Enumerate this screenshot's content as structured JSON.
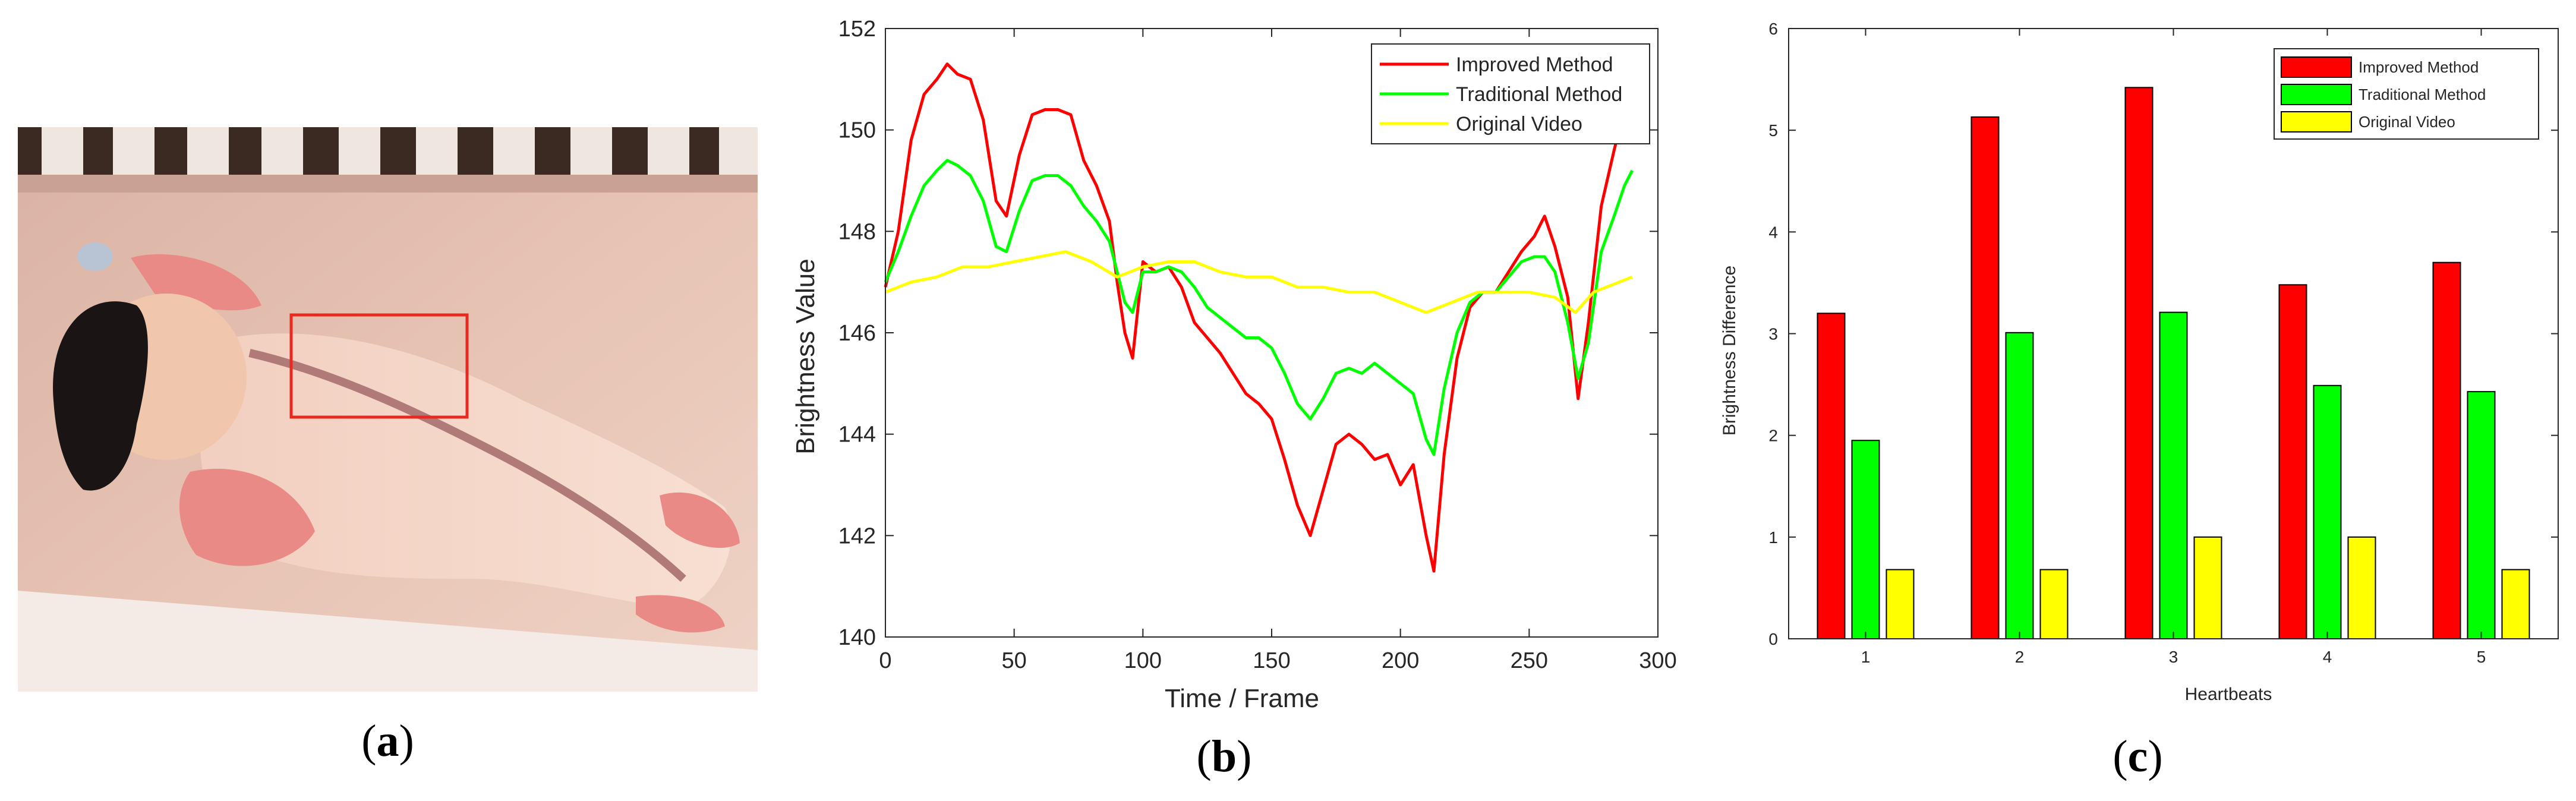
{
  "figure": {
    "photo_caption": "a",
    "photo": {
      "title": "",
      "roi_color": "#e8291f"
    }
  },
  "chart_data": [
    {
      "panel": "b",
      "caption": "b",
      "type": "line",
      "title": "",
      "xlabel": "Time / Frame",
      "ylabel": "Brightness Value",
      "xlim": [
        0,
        300
      ],
      "ylim": [
        140,
        152
      ],
      "xticks": [
        "0",
        "50",
        "100",
        "150",
        "200",
        "250",
        "300"
      ],
      "yticks": [
        "140",
        "142",
        "144",
        "146",
        "148",
        "150",
        "152"
      ],
      "grid": false,
      "legend_position": "top-right",
      "series": [
        {
          "name": "Improved Method",
          "color": "#ff0000",
          "x": [
            0,
            5,
            10,
            15,
            20,
            24,
            28,
            33,
            38,
            43,
            47,
            52,
            57,
            62,
            67,
            72,
            77,
            82,
            87,
            90,
            93,
            96,
            100,
            105,
            110,
            115,
            120,
            125,
            130,
            135,
            140,
            145,
            150,
            155,
            160,
            165,
            170,
            175,
            180,
            185,
            190,
            195,
            200,
            205,
            210,
            213,
            217,
            222,
            227,
            232,
            237,
            242,
            247,
            252,
            256,
            260,
            265,
            269,
            273,
            278,
            283,
            287,
            290
          ],
          "y": [
            146.9,
            148.0,
            149.8,
            150.7,
            151.0,
            151.3,
            151.1,
            151.0,
            150.2,
            148.6,
            148.3,
            149.5,
            150.3,
            150.4,
            150.4,
            150.3,
            149.4,
            148.9,
            148.2,
            147.0,
            146.0,
            145.5,
            147.4,
            147.2,
            147.3,
            146.9,
            146.2,
            145.9,
            145.6,
            145.2,
            144.8,
            144.6,
            144.3,
            143.5,
            142.6,
            142.0,
            142.9,
            143.8,
            144.0,
            143.8,
            143.5,
            143.6,
            143.0,
            143.4,
            142.0,
            141.3,
            143.6,
            145.5,
            146.5,
            146.8,
            146.8,
            147.2,
            147.6,
            147.9,
            148.3,
            147.7,
            146.7,
            144.7,
            146.2,
            148.5,
            149.6,
            150.4,
            150.9
          ]
        },
        {
          "name": "Traditional Method",
          "color": "#00ff00",
          "x": [
            0,
            5,
            10,
            15,
            20,
            24,
            28,
            33,
            38,
            43,
            47,
            52,
            57,
            62,
            67,
            72,
            77,
            82,
            87,
            90,
            93,
            96,
            100,
            105,
            110,
            115,
            120,
            125,
            130,
            135,
            140,
            145,
            150,
            155,
            160,
            165,
            170,
            175,
            180,
            185,
            190,
            195,
            200,
            205,
            210,
            213,
            217,
            222,
            227,
            232,
            237,
            242,
            247,
            252,
            256,
            260,
            265,
            269,
            273,
            278,
            283,
            287,
            290
          ],
          "y": [
            147.0,
            147.6,
            148.3,
            148.9,
            149.2,
            149.4,
            149.3,
            149.1,
            148.6,
            147.7,
            147.6,
            148.4,
            149.0,
            149.1,
            149.1,
            148.9,
            148.5,
            148.2,
            147.8,
            147.2,
            146.6,
            146.4,
            147.2,
            147.2,
            147.3,
            147.2,
            146.9,
            146.5,
            146.3,
            146.1,
            145.9,
            145.9,
            145.7,
            145.2,
            144.6,
            144.3,
            144.7,
            145.2,
            145.3,
            145.2,
            145.4,
            145.2,
            145.0,
            144.8,
            143.9,
            143.6,
            144.9,
            146.0,
            146.6,
            146.8,
            146.8,
            147.1,
            147.4,
            147.5,
            147.5,
            147.2,
            146.2,
            145.1,
            145.8,
            147.6,
            148.3,
            148.9,
            149.2
          ]
        },
        {
          "name": "Original Video",
          "color": "#ffff00",
          "x": [
            0,
            10,
            20,
            30,
            40,
            50,
            60,
            70,
            80,
            90,
            100,
            110,
            120,
            130,
            140,
            150,
            160,
            170,
            180,
            190,
            200,
            210,
            220,
            230,
            240,
            250,
            260,
            268,
            275,
            285,
            290
          ],
          "y": [
            146.8,
            147.0,
            147.1,
            147.3,
            147.3,
            147.4,
            147.5,
            147.6,
            147.4,
            147.1,
            147.3,
            147.4,
            147.4,
            147.2,
            147.1,
            147.1,
            146.9,
            146.9,
            146.8,
            146.8,
            146.6,
            146.4,
            146.6,
            146.8,
            146.8,
            146.8,
            146.7,
            146.4,
            146.8,
            147.0,
            147.1
          ]
        }
      ]
    },
    {
      "panel": "c",
      "caption": "c",
      "type": "bar",
      "title": "",
      "xlabel": "Heartbeats",
      "ylabel": "Brightness Difference",
      "categories": [
        "1",
        "2",
        "3",
        "4",
        "5"
      ],
      "ylim": [
        0,
        6
      ],
      "yticks": [
        "0",
        "1",
        "2",
        "3",
        "4",
        "5",
        "6"
      ],
      "grid": false,
      "legend_position": "top-right",
      "series": [
        {
          "name": "Improved Method",
          "color": "#ff0000",
          "values": [
            3.2,
            5.13,
            5.42,
            3.48,
            3.7
          ]
        },
        {
          "name": "Traditional Method",
          "color": "#00ff00",
          "values": [
            1.95,
            3.01,
            3.21,
            2.49,
            2.43
          ]
        },
        {
          "name": "Original Video",
          "color": "#ffff00",
          "values": [
            0.68,
            0.68,
            1.0,
            1.0,
            0.68
          ]
        }
      ]
    }
  ]
}
